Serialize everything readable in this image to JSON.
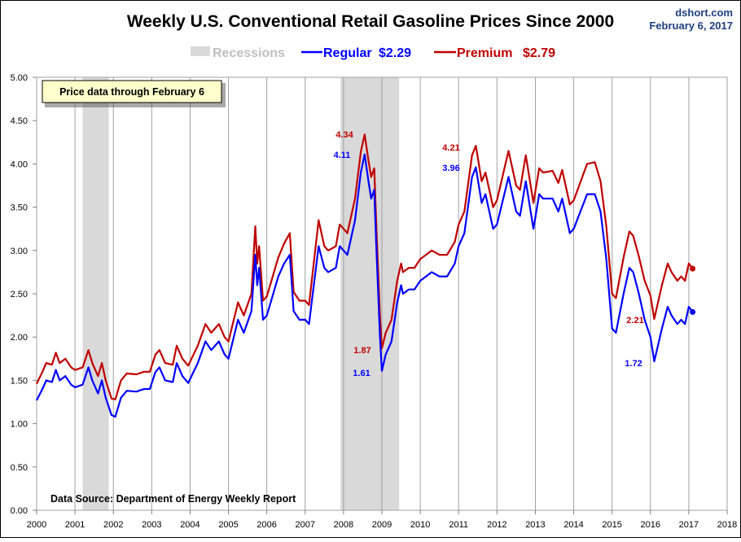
{
  "chart_data": {
    "type": "line",
    "title": "Weekly U.S. Conventional Retail Gasoline Prices Since 2000",
    "source_site": "dshort.com",
    "date_label": "February 6, 2017",
    "note": "Price data through February 6",
    "source": "Data Source: Department of Energy Weekly Report",
    "xlabel": "",
    "ylabel": "",
    "xlim": [
      2000,
      2018
    ],
    "ylim": [
      0,
      5
    ],
    "x_ticks": [
      "2000",
      "2001",
      "2002",
      "2003",
      "2004",
      "2005",
      "2006",
      "2007",
      "2008",
      "2009",
      "2010",
      "2011",
      "2012",
      "2013",
      "2014",
      "2015",
      "2016",
      "2017",
      "2018"
    ],
    "y_ticks": [
      "0.00",
      "0.50",
      "1.00",
      "1.50",
      "2.00",
      "2.50",
      "3.00",
      "3.50",
      "4.00",
      "4.50",
      "5.00"
    ],
    "grid": "vertical",
    "legend": {
      "placement": "top-center",
      "recessions_label": "Recessions",
      "regular_label": "Regular",
      "regular_value": "$2.29",
      "premium_label": "Premium",
      "premium_value": "$2.79"
    },
    "recessions": [
      [
        2001.2,
        2001.88
      ],
      [
        2007.92,
        2009.45
      ]
    ],
    "colors": {
      "regular": "#0000ff",
      "premium": "#c00000",
      "recession": "#d9d9d9",
      "title": "#000000",
      "site": "#1f3f7f"
    },
    "x": [
      2000.0,
      2000.15,
      2000.25,
      2000.4,
      2000.5,
      2000.6,
      2000.75,
      2000.9,
      2001.0,
      2001.2,
      2001.35,
      2001.45,
      2001.6,
      2001.7,
      2001.8,
      2001.95,
      2002.05,
      2002.2,
      2002.35,
      2002.6,
      2002.8,
      2002.95,
      2003.1,
      2003.2,
      2003.35,
      2003.55,
      2003.65,
      2003.8,
      2003.95,
      2004.2,
      2004.4,
      2004.55,
      2004.75,
      2004.9,
      2005.0,
      2005.25,
      2005.4,
      2005.6,
      2005.7,
      2005.75,
      2005.8,
      2005.9,
      2006.0,
      2006.3,
      2006.45,
      2006.6,
      2006.7,
      2006.85,
      2007.0,
      2007.1,
      2007.35,
      2007.5,
      2007.6,
      2007.8,
      2007.9,
      2008.0,
      2008.1,
      2008.3,
      2008.45,
      2008.55,
      2008.65,
      2008.72,
      2008.8,
      2008.85,
      2008.95,
      2009.0,
      2009.1,
      2009.25,
      2009.4,
      2009.5,
      2009.55,
      2009.7,
      2009.85,
      2010.0,
      2010.3,
      2010.5,
      2010.7,
      2010.9,
      2011.0,
      2011.15,
      2011.35,
      2011.45,
      2011.6,
      2011.7,
      2011.9,
      2012.0,
      2012.3,
      2012.5,
      2012.6,
      2012.75,
      2012.95,
      2013.1,
      2013.2,
      2013.45,
      2013.6,
      2013.7,
      2013.9,
      2014.0,
      2014.35,
      2014.55,
      2014.7,
      2014.85,
      2015.0,
      2015.1,
      2015.3,
      2015.45,
      2015.55,
      2015.7,
      2015.85,
      2016.0,
      2016.1,
      2016.3,
      2016.45,
      2016.55,
      2016.7,
      2016.8,
      2016.9,
      2017.0,
      2017.1
    ],
    "series": [
      {
        "name": "Regular",
        "values": [
          1.27,
          1.4,
          1.5,
          1.48,
          1.62,
          1.5,
          1.55,
          1.45,
          1.42,
          1.45,
          1.65,
          1.5,
          1.35,
          1.5,
          1.3,
          1.1,
          1.08,
          1.3,
          1.38,
          1.37,
          1.4,
          1.4,
          1.6,
          1.65,
          1.5,
          1.48,
          1.7,
          1.55,
          1.47,
          1.7,
          1.95,
          1.85,
          1.95,
          1.8,
          1.75,
          2.2,
          2.05,
          2.3,
          2.95,
          2.6,
          2.8,
          2.2,
          2.25,
          2.7,
          2.85,
          2.95,
          2.3,
          2.2,
          2.2,
          2.15,
          3.05,
          2.8,
          2.75,
          2.8,
          3.05,
          3.0,
          2.95,
          3.35,
          3.9,
          4.11,
          3.8,
          3.6,
          3.7,
          3.1,
          2.0,
          1.61,
          1.8,
          1.95,
          2.4,
          2.6,
          2.5,
          2.55,
          2.55,
          2.65,
          2.75,
          2.7,
          2.7,
          2.85,
          3.05,
          3.2,
          3.85,
          3.96,
          3.55,
          3.65,
          3.25,
          3.3,
          3.85,
          3.45,
          3.4,
          3.8,
          3.25,
          3.65,
          3.6,
          3.6,
          3.45,
          3.6,
          3.2,
          3.25,
          3.65,
          3.65,
          3.45,
          2.9,
          2.1,
          2.05,
          2.5,
          2.8,
          2.75,
          2.5,
          2.2,
          2.0,
          1.72,
          2.1,
          2.35,
          2.25,
          2.15,
          2.2,
          2.15,
          2.35,
          2.29
        ]
      },
      {
        "name": "Premium",
        "values": [
          1.46,
          1.6,
          1.7,
          1.68,
          1.82,
          1.7,
          1.75,
          1.65,
          1.62,
          1.65,
          1.85,
          1.7,
          1.55,
          1.7,
          1.5,
          1.29,
          1.28,
          1.5,
          1.58,
          1.57,
          1.6,
          1.6,
          1.8,
          1.85,
          1.7,
          1.68,
          1.9,
          1.75,
          1.67,
          1.9,
          2.15,
          2.05,
          2.15,
          2.0,
          1.95,
          2.4,
          2.25,
          2.5,
          3.28,
          2.85,
          3.05,
          2.42,
          2.47,
          2.92,
          3.08,
          3.2,
          2.52,
          2.42,
          2.42,
          2.37,
          3.35,
          3.05,
          3.0,
          3.05,
          3.3,
          3.25,
          3.2,
          3.6,
          4.14,
          4.34,
          4.04,
          3.85,
          3.95,
          3.35,
          2.25,
          1.87,
          2.05,
          2.2,
          2.65,
          2.85,
          2.75,
          2.8,
          2.8,
          2.9,
          3.0,
          2.95,
          2.95,
          3.1,
          3.3,
          3.45,
          4.1,
          4.21,
          3.8,
          3.9,
          3.5,
          3.58,
          4.15,
          3.75,
          3.7,
          4.1,
          3.55,
          3.95,
          3.9,
          3.92,
          3.78,
          3.93,
          3.53,
          3.58,
          4.0,
          4.02,
          3.8,
          3.28,
          2.5,
          2.45,
          2.92,
          3.22,
          3.17,
          2.93,
          2.65,
          2.48,
          2.21,
          2.6,
          2.85,
          2.75,
          2.65,
          2.7,
          2.65,
          2.85,
          2.79
        ]
      }
    ],
    "annotations": [
      {
        "text": "4.34",
        "series": "Premium"
      },
      {
        "text": "4.11",
        "series": "Regular"
      },
      {
        "text": "4.21",
        "series": "Premium"
      },
      {
        "text": "3.96",
        "series": "Regular"
      },
      {
        "text": "1.87",
        "series": "Premium"
      },
      {
        "text": "1.61",
        "series": "Regular"
      },
      {
        "text": "2.21",
        "series": "Premium"
      },
      {
        "text": "1.72",
        "series": "Regular"
      }
    ]
  }
}
